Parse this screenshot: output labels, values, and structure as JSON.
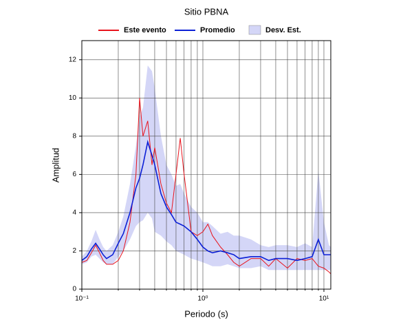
{
  "chart_data": {
    "type": "line",
    "title": "Sitio PBNA",
    "xlabel": "Periodo (s)",
    "ylabel": "Amplitud",
    "log_x": true,
    "grid": true,
    "legend": "top",
    "xlim": [
      0.1,
      11.4
    ],
    "ylim": [
      0,
      13
    ],
    "xticks": [
      {
        "value": 0.1,
        "label": "10⁻¹"
      },
      {
        "value": 1,
        "label": "10⁰"
      },
      {
        "value": 10,
        "label": "10¹"
      }
    ],
    "xminor": [
      0.2,
      0.3,
      0.4,
      0.5,
      0.6,
      0.7,
      0.8,
      0.9,
      2,
      3,
      4,
      5,
      6,
      7,
      8,
      9
    ],
    "yticks": [
      0,
      2,
      4,
      6,
      8,
      10,
      12
    ],
    "x": [
      0.1,
      0.11,
      0.12,
      0.13,
      0.14,
      0.15,
      0.16,
      0.18,
      0.2,
      0.22,
      0.25,
      0.28,
      0.3,
      0.32,
      0.35,
      0.38,
      0.4,
      0.45,
      0.5,
      0.55,
      0.6,
      0.65,
      0.7,
      0.8,
      0.9,
      1.0,
      1.1,
      1.2,
      1.4,
      1.6,
      1.8,
      2.0,
      2.5,
      3,
      3.5,
      4,
      5,
      6,
      7,
      8,
      9,
      10,
      11,
      11.4
    ],
    "series": [
      {
        "name": "Este evento",
        "color": "#e8121b",
        "values": [
          1.4,
          1.5,
          1.9,
          2.3,
          1.9,
          1.5,
          1.3,
          1.3,
          1.5,
          2.0,
          3.5,
          6.0,
          10.0,
          8.0,
          8.8,
          6.5,
          7.4,
          5.5,
          4.5,
          4.0,
          6.0,
          7.9,
          6.0,
          3.0,
          2.8,
          3.0,
          3.4,
          2.8,
          2.2,
          1.8,
          1.4,
          1.2,
          1.6,
          1.6,
          1.2,
          1.6,
          1.1,
          1.6,
          1.5,
          1.6,
          1.2,
          1.1,
          0.9,
          0.8
        ]
      },
      {
        "name": "Promedio",
        "color": "#0b1fd6",
        "values": [
          1.5,
          1.7,
          2.1,
          2.4,
          2.1,
          1.8,
          1.6,
          1.8,
          2.4,
          2.9,
          4.0,
          5.3,
          5.8,
          6.5,
          7.7,
          7.0,
          6.5,
          5.0,
          4.3,
          3.9,
          3.5,
          3.4,
          3.3,
          3.0,
          2.6,
          2.2,
          2.0,
          1.9,
          2.0,
          1.9,
          1.8,
          1.6,
          1.7,
          1.7,
          1.5,
          1.6,
          1.6,
          1.5,
          1.6,
          1.7,
          2.6,
          1.8,
          1.8,
          1.8
        ]
      },
      {
        "name": "Desv. Est.",
        "type": "band",
        "color": "#d4d6f7",
        "upper": [
          1.7,
          2.0,
          2.5,
          3.1,
          2.6,
          2.2,
          2.0,
          2.3,
          3.0,
          3.8,
          5.5,
          7.5,
          9.0,
          9.5,
          11.7,
          11.4,
          10.5,
          8.0,
          6.5,
          6.0,
          5.4,
          5.5,
          5.0,
          4.3,
          4.0,
          3.5,
          3.5,
          3.3,
          2.9,
          3.0,
          2.8,
          2.8,
          2.6,
          2.3,
          2.2,
          2.3,
          2.3,
          2.2,
          2.4,
          2.2,
          6.2,
          3.5,
          2.3,
          2.2
        ],
        "lower": [
          1.3,
          1.4,
          1.7,
          1.8,
          1.6,
          1.4,
          1.3,
          1.3,
          1.7,
          2.0,
          2.6,
          3.3,
          3.5,
          3.6,
          4.0,
          3.7,
          3.0,
          2.8,
          2.5,
          2.3,
          2.0,
          1.9,
          1.8,
          1.6,
          1.5,
          1.4,
          1.3,
          1.2,
          1.2,
          1.3,
          1.2,
          1.1,
          1.1,
          1.2,
          1.0,
          1.0,
          1.0,
          1.0,
          1.0,
          1.0,
          1.0,
          1.0,
          1.0,
          1.0
        ]
      }
    ]
  }
}
